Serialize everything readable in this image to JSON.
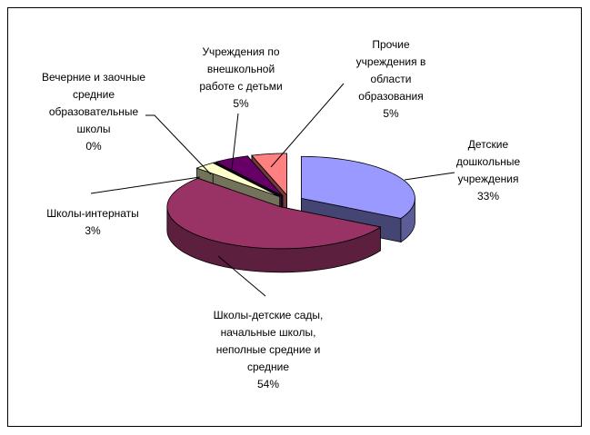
{
  "chart_data": {
    "type": "pie",
    "categories": [
      "Детские дошкольные учреждения",
      "Школы-детские сады, начальные школы, неполные средние и средние",
      "Школы-интернаты",
      "Вечерние и заочные средние образовательные школы",
      "Учреждения по внешкольной работе с детьми",
      "Прочие учреждения в области образования"
    ],
    "values": [
      33,
      54,
      3,
      0,
      5,
      5
    ],
    "value_labels": [
      "33%",
      "54%",
      "3%",
      "0%",
      "5%",
      "5%"
    ],
    "colors": [
      "#9999FF",
      "#993366",
      "#FFFFCC",
      "#CCFFFF",
      "#660066",
      "#FF8080"
    ]
  }
}
